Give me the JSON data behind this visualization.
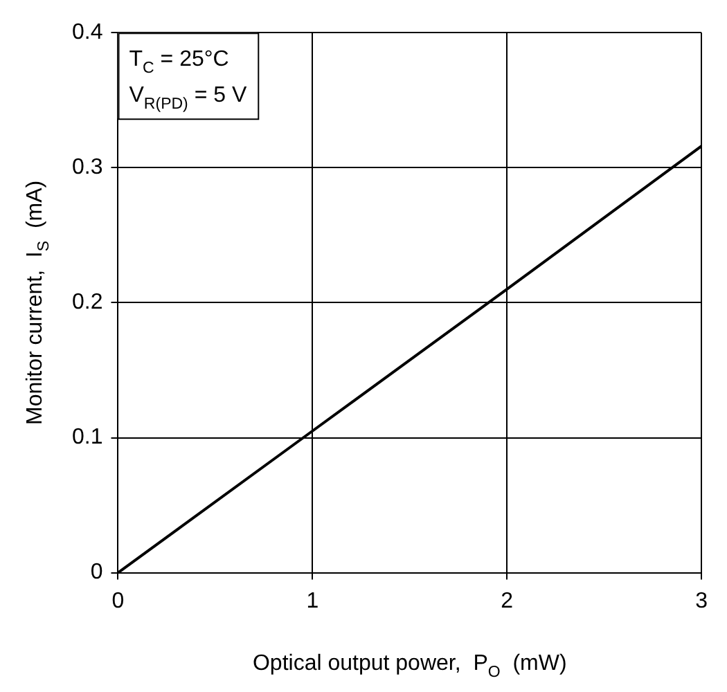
{
  "chart_data": {
    "type": "line",
    "xlabel": "Optical output power,  P$_{O}$  (mW)",
    "ylabel": "Monitor current,  I$_{S}$  (mA)",
    "annotations": [
      "T$_{C}$ = 25°C",
      "V$_{R(PD)}$ = 5 V"
    ],
    "x": [
      0,
      1,
      2,
      3
    ],
    "series": [
      {
        "color": "#000000",
        "values": [
          0,
          0.105,
          0.21,
          0.316
        ]
      }
    ],
    "xlim": [
      0,
      3
    ],
    "xticks": [
      0,
      1,
      2,
      3
    ],
    "ylim": [
      0,
      0.4
    ],
    "yticks": [
      0,
      0.1,
      0.2,
      0.3,
      0.4
    ],
    "grid": true,
    "legend": false,
    "marker": "none",
    "line_style": "solid"
  }
}
